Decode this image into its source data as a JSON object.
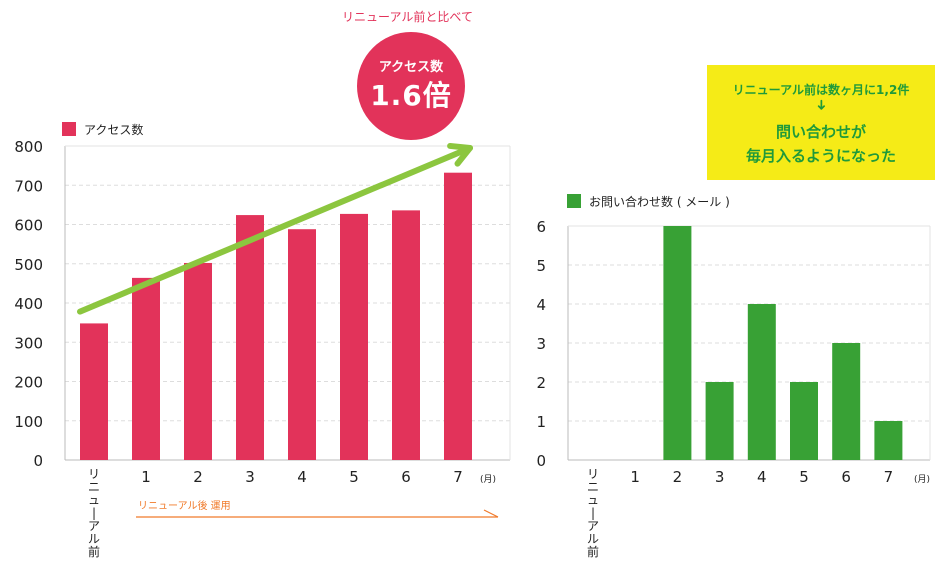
{
  "header": {
    "comparison_text": "リニューアル前と比べて",
    "badge_label": "アクセス数",
    "badge_value": "1.6倍"
  },
  "note": {
    "line1": "リニューアル前は数ヶ月に1,2件",
    "arrow": "➜",
    "line2": "問い合わせが",
    "line3": "毎月入るようになった"
  },
  "annotation": {
    "renewal_label": "リニューアル後 運用",
    "month_unit": "(月)"
  },
  "colors": {
    "access": "#e2335a",
    "inquiries": "#38a135",
    "trend": "#8cc63f",
    "renewal_line": "#f07a2a"
  },
  "chart_data": [
    {
      "type": "bar",
      "legend": "アクセス数",
      "categories": [
        "リニューアル前",
        "1",
        "2",
        "3",
        "4",
        "5",
        "6",
        "7"
      ],
      "values": [
        348,
        464,
        502,
        624,
        588,
        627,
        636,
        732
      ],
      "ylim": [
        0,
        800
      ],
      "yticks": [
        0,
        100,
        200,
        300,
        400,
        500,
        600,
        700,
        800
      ],
      "grid": true,
      "trend_arrow": true
    },
    {
      "type": "bar",
      "legend": "お問い合わせ数 ( メール )",
      "categories": [
        "リニューアル前",
        "1",
        "2",
        "3",
        "4",
        "5",
        "6",
        "7"
      ],
      "values": [
        0,
        0,
        6,
        2,
        4,
        2,
        3,
        1
      ],
      "ylim": [
        0,
        6
      ],
      "yticks": [
        0,
        1,
        2,
        3,
        4,
        5,
        6
      ],
      "grid": true
    }
  ]
}
